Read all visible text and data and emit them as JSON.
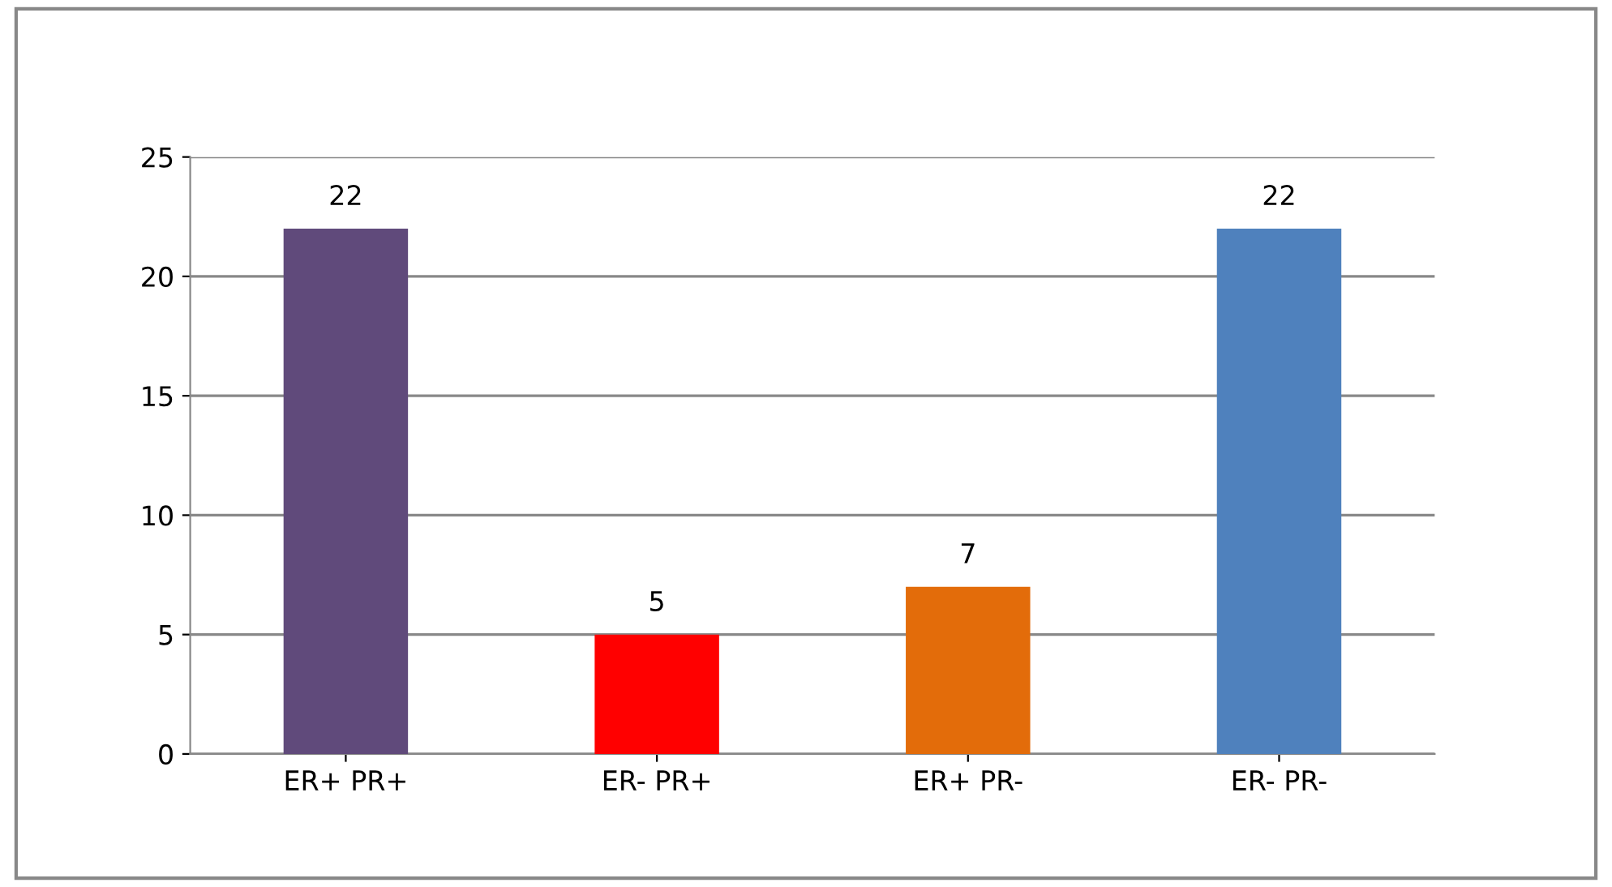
{
  "chart_data": {
    "type": "bar",
    "categories": [
      "ER+ PR+",
      "ER- PR+",
      "ER+ PR-",
      "ER- PR-"
    ],
    "values": [
      22,
      5,
      7,
      22
    ],
    "colors": [
      "#604a7b",
      "#ff0000",
      "#e36c0a",
      "#4f81bd"
    ],
    "ylim": [
      0,
      25
    ],
    "yticks": [
      0,
      5,
      10,
      15,
      20,
      25
    ],
    "grid": "y",
    "data_labels": true,
    "legend": false
  }
}
